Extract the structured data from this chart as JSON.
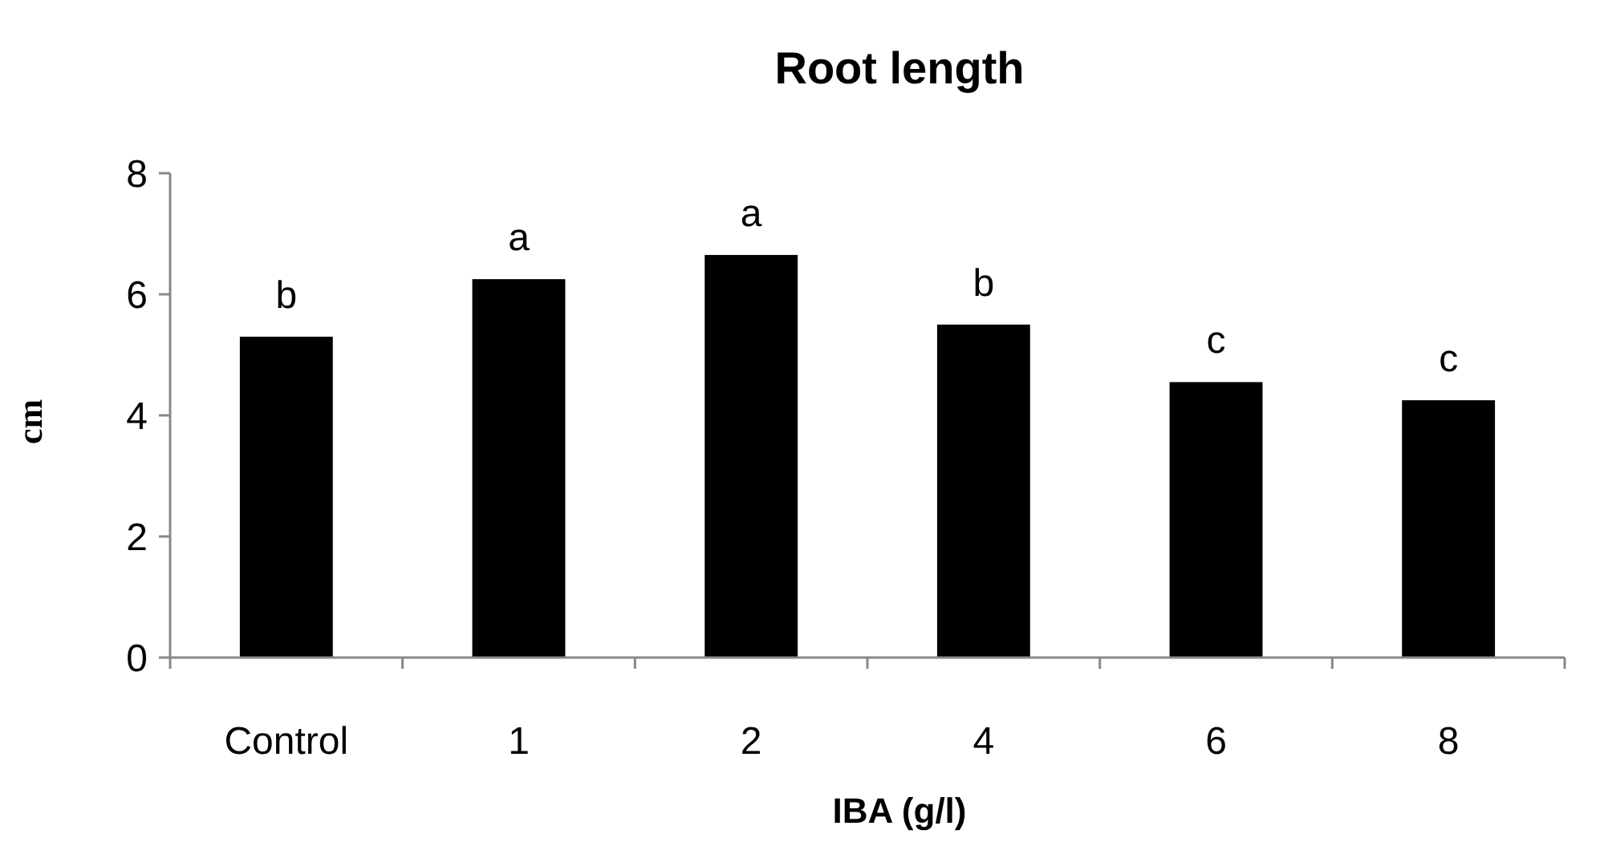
{
  "chart_data": {
    "type": "bar",
    "title": "Root length",
    "xlabel": "IBA (g/l)",
    "ylabel": "cm",
    "categories": [
      "Control",
      "1",
      "2",
      "4",
      "6",
      "8"
    ],
    "values": [
      5.3,
      6.25,
      6.65,
      5.5,
      4.55,
      4.25
    ],
    "color": "#000000",
    "ylim": [
      0,
      8
    ],
    "yticks": [
      0,
      2,
      4,
      6,
      8
    ],
    "annotations": [
      {
        "text": "b",
        "x": "Control",
        "y": 5.3
      },
      {
        "text": "a",
        "x": "1",
        "y": 6.25
      },
      {
        "text": "a",
        "x": "2",
        "y": 6.65
      },
      {
        "text": "b",
        "x": "4",
        "y": 5.5
      },
      {
        "text": "c",
        "x": "6",
        "y": 4.55
      },
      {
        "text": "c",
        "x": "8",
        "y": 4.25
      }
    ]
  }
}
